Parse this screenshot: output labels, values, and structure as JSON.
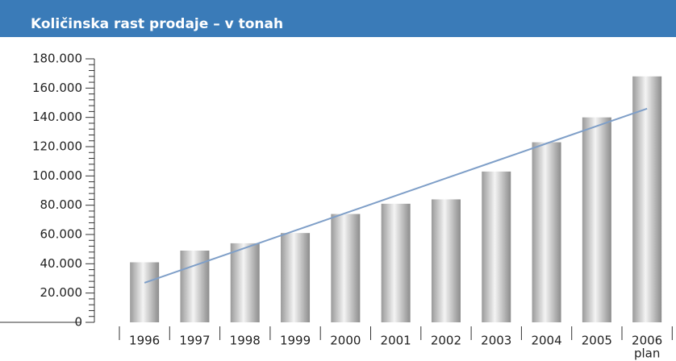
{
  "chart_data": {
    "type": "bar",
    "title": "Količinska rast prodaje – v tonah",
    "categories": [
      "1996",
      "1997",
      "1998",
      "1999",
      "2000",
      "2001",
      "2002",
      "2003",
      "2004",
      "2005",
      "2006"
    ],
    "values": [
      41000,
      49000,
      54000,
      61000,
      74000,
      81000,
      84000,
      103000,
      123000,
      140000,
      168000
    ],
    "color": "#b0b0b0",
    "trend": {
      "color": "#7f9fc8",
      "values": [
        27000,
        38900,
        50800,
        62700,
        74600,
        86500,
        98400,
        110300,
        122200,
        134100,
        146000
      ]
    },
    "annotation": "plan",
    "ylim": [
      0,
      180000
    ],
    "yticks": [
      0,
      {
        "value": 20000,
        "label": "20.000"
      },
      {
        "value": 40000,
        "label": "40.000"
      },
      {
        "value": 60000,
        "label": "60.000"
      },
      {
        "value": 80000,
        "label": "80.000"
      },
      {
        "value": 100000,
        "label": "100.000"
      },
      {
        "value": 120000,
        "label": "120.000"
      },
      {
        "value": 140000,
        "label": "140.000"
      },
      {
        "value": 160000,
        "label": "160.000"
      },
      {
        "value": 180000,
        "label": "180.000"
      }
    ],
    "grid": false
  }
}
